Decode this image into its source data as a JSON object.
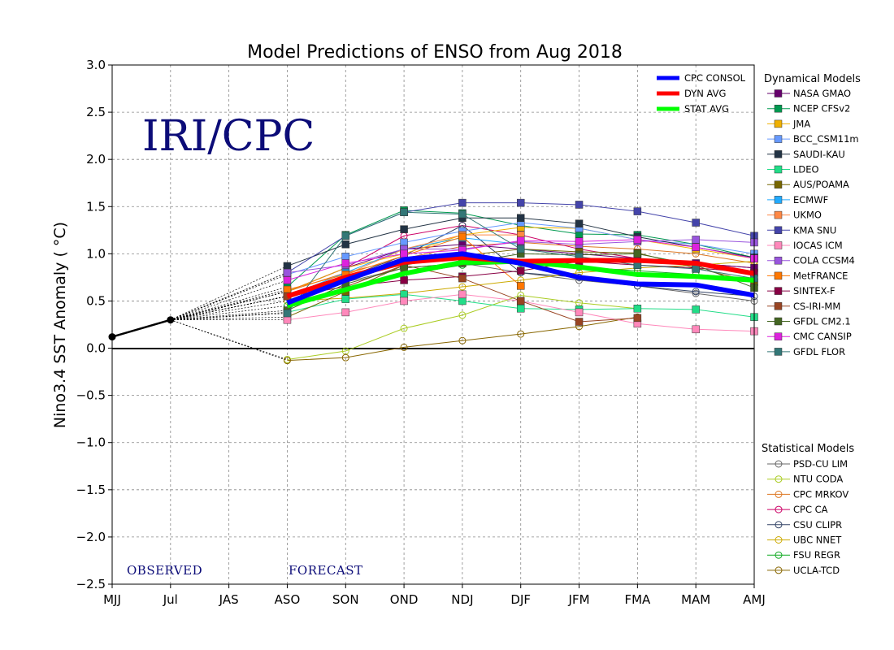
{
  "chart_data": {
    "type": "line",
    "title": "Model Predictions of ENSO from Aug 2018",
    "ylabel": "Nino3.4 SST Anomaly ( °C)",
    "xlabel": "",
    "x_categories": [
      "MJJ",
      "Jul",
      "JAS",
      "ASO",
      "SON",
      "OND",
      "NDJ",
      "DJF",
      "JFM",
      "FMA",
      "MAM",
      "AMJ"
    ],
    "ylim": [
      -2.5,
      3.0
    ],
    "yticks": [
      "−2.5",
      "−2.0",
      "−1.5",
      "−1.0",
      "−0.5",
      "0.0",
      "0.5",
      "1.0",
      "1.5",
      "2.0",
      "2.5",
      "3.0"
    ],
    "grid": true,
    "watermark": "IRI/CPC",
    "annotations": {
      "observed": "OBSERVED",
      "forecast": "FORECAST"
    },
    "observed": {
      "x": [
        "MJJ",
        "Jul"
      ],
      "values": [
        0.12,
        0.3
      ]
    },
    "summary_series": [
      {
        "name": "CPC CONSOL",
        "color": "#0000ff",
        "values": [
          0.48,
          0.72,
          0.94,
          1.0,
          0.9,
          0.75,
          0.68,
          0.67,
          0.56
        ]
      },
      {
        "name": "DYN AVG",
        "color": "#ff0000",
        "values": [
          0.55,
          0.75,
          0.91,
          0.96,
          0.92,
          0.93,
          0.93,
          0.9,
          0.79
        ]
      },
      {
        "name": "STAT AVG",
        "color": "#00ff00",
        "values": [
          0.45,
          0.62,
          0.79,
          0.91,
          0.92,
          0.86,
          0.78,
          0.76,
          0.72
        ]
      }
    ],
    "legend_headers": {
      "dynamical": "Dynamical Models",
      "statistical": "Statistical Models"
    },
    "dynamical_models": [
      {
        "name": "NASA GMAO",
        "color": "#66006c",
        "values": [
          0.6,
          0.85,
          1.05,
          1.1,
          1.05,
          1.0,
          0.95,
          0.9,
          0.85
        ]
      },
      {
        "name": "NCEP CFSv2",
        "color": "#009a50",
        "values": [
          0.65,
          1.2,
          1.46,
          1.43,
          1.3,
          1.21,
          1.2,
          1.1,
          0.96
        ]
      },
      {
        "name": "JMA",
        "color": "#f0b000",
        "values": [
          0.6,
          0.85,
          1.0,
          1.2,
          1.28,
          1.27,
          1.15,
          1.05,
          0.95
        ]
      },
      {
        "name": "BCC_CSM11m",
        "color": "#6699ff",
        "values": [
          0.78,
          0.97,
          1.12,
          1.24,
          1.33,
          1.27,
          1.15,
          1.1,
          1.0
        ]
      },
      {
        "name": "SAUDI-KAU",
        "color": "#223344",
        "values": [
          0.87,
          1.1,
          1.26,
          1.38,
          1.38,
          1.32,
          1.18,
          1.07,
          0.96
        ]
      },
      {
        "name": "LDEO",
        "color": "#22dd88",
        "values": [
          0.38,
          0.52,
          0.57,
          0.5,
          0.42,
          0.41,
          0.42,
          0.41,
          0.33
        ]
      },
      {
        "name": "AUS/POAMA",
        "color": "#776600",
        "values": [
          0.33,
          0.6,
          0.88,
          0.98,
          1.05,
          1.02,
          1.01,
          0.85,
          0.7
        ]
      },
      {
        "name": "ECMWF",
        "color": "#22aaff",
        "values": [
          0.55,
          0.8,
          1.05,
          1.17,
          1.1
        ]
      },
      {
        "name": "UKMO",
        "color": "#ff8844",
        "values": [
          0.55,
          0.78,
          1.05,
          1.2,
          1.2
        ]
      },
      {
        "name": "KMA SNU",
        "color": "#4444aa",
        "values": [
          0.8,
          1.19,
          1.44,
          1.54,
          1.54,
          1.52,
          1.45,
          1.33,
          1.19
        ]
      },
      {
        "name": "IOCAS ICM",
        "color": "#ff88bb",
        "values": [
          0.3,
          0.38,
          0.5,
          0.57,
          0.5,
          0.38,
          0.26,
          0.2,
          0.18
        ]
      },
      {
        "name": "COLA CCSM4",
        "color": "#9955dd",
        "values": [
          0.8,
          0.88,
          1.05,
          1.05,
          1.13,
          1.1,
          1.13,
          1.15,
          1.12
        ]
      },
      {
        "name": "MetFRANCE",
        "color": "#ff7700",
        "values": [
          0.62,
          0.78,
          0.98,
          1.18,
          0.66
        ]
      },
      {
        "name": "SINTEX-F",
        "color": "#880044",
        "values": [
          0.55,
          0.65,
          0.72,
          0.76,
          0.82,
          0.92,
          0.88,
          0.85,
          0.8
        ]
      },
      {
        "name": "CS-IRI-MM",
        "color": "#994422",
        "values": [
          0.55,
          0.65,
          0.88,
          0.74,
          0.5,
          0.28,
          0.32
        ]
      },
      {
        "name": "GFDL CM2.1",
        "color": "#446622",
        "values": [
          0.4,
          0.68,
          0.85,
          0.9,
          1.0,
          0.99,
          1.0,
          0.88,
          0.64
        ]
      },
      {
        "name": "CMC CANSIP",
        "color": "#dd22dd",
        "values": [
          0.72,
          0.9,
          1.0,
          1.04,
          1.14,
          1.13,
          1.15,
          1.07,
          0.95
        ]
      },
      {
        "name": "GFDL FLOR",
        "color": "#337777",
        "values": [
          0.37,
          1.19,
          1.44,
          1.42,
          1.05,
          0.97,
          0.88,
          0.84,
          0.74
        ]
      }
    ],
    "statistical_models": [
      {
        "name": "PSD-CU LIM",
        "color": "#666666",
        "values": [
          0.55,
          0.7,
          0.85,
          0.9,
          0.8,
          0.72,
          0.66,
          0.58,
          0.5
        ]
      },
      {
        "name": "NTU CODA",
        "color": "#aacc22",
        "values": [
          -0.12,
          -0.03,
          0.21,
          0.35,
          0.56,
          0.48,
          0.42
        ]
      },
      {
        "name": "CPC MRKOV",
        "color": "#dd7722",
        "values": [
          0.6,
          0.8,
          0.95,
          1.08,
          1.12,
          1.08,
          1.05,
          1.0,
          0.9
        ]
      },
      {
        "name": "CPC CA",
        "color": "#cc0066",
        "values": [
          0.6,
          0.85,
          1.19,
          1.3,
          1.2,
          1.05,
          0.95,
          0.9,
          0.85
        ]
      },
      {
        "name": "CSU CLIPR",
        "color": "#334466",
        "values": [
          0.55,
          0.75,
          0.98,
          1.3,
          0.8,
          0.75,
          0.66,
          0.6,
          0.55
        ]
      },
      {
        "name": "UBC NNET",
        "color": "#ccaa00",
        "values": [
          0.5,
          0.53,
          0.58,
          0.65,
          0.72,
          0.8,
          0.85,
          0.88,
          0.92
        ]
      },
      {
        "name": "FSU REGR",
        "color": "#11aa22",
        "values": [
          0.45,
          0.6,
          0.78,
          0.88,
          0.9,
          0.86,
          0.82,
          0.78,
          0.74
        ]
      },
      {
        "name": "UCLA-TCD",
        "color": "#886600",
        "values": [
          -0.13,
          -0.1,
          0.01,
          0.08,
          0.15,
          0.23,
          0.33
        ]
      }
    ]
  }
}
